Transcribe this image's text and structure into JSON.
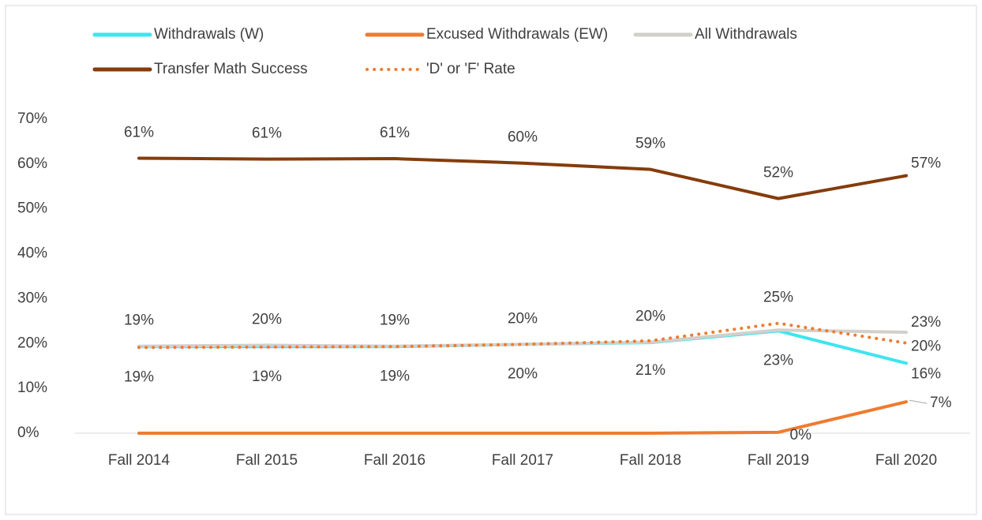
{
  "chart_data": {
    "type": "line",
    "categories": [
      "Fall 2014",
      "Fall 2015",
      "Fall 2016",
      "Fall 2017",
      "Fall 2018",
      "Fall 2019",
      "Fall 2020"
    ],
    "series": [
      {
        "name": "Withdrawals (W)",
        "color": "#3ee5f0",
        "style": "solid",
        "values": [
          19.3,
          19.3,
          19.3,
          19.8,
          20.2,
          22.8,
          15.6
        ],
        "value_labels": [
          null,
          null,
          null,
          null,
          null,
          "23%",
          "16%"
        ]
      },
      {
        "name": "Excused Withdrawals (EW)",
        "color": "#ef7b2f",
        "style": "solid",
        "values": [
          0,
          0,
          0,
          0,
          0,
          0.2,
          7.0
        ],
        "value_labels": [
          null,
          null,
          null,
          null,
          null,
          "0%",
          "7%"
        ]
      },
      {
        "name": "All Withdrawals",
        "color": "#d2d0ca",
        "style": "solid",
        "values": [
          19.4,
          19.6,
          19.4,
          19.8,
          20.3,
          23.0,
          22.5
        ],
        "value_labels": [
          "19%",
          "20%",
          "19%",
          "20%",
          "20%",
          null,
          "23%"
        ]
      },
      {
        "name": "Transfer Math Success",
        "color": "#843c0c",
        "style": "solid",
        "values": [
          61.3,
          61.1,
          61.2,
          60.2,
          58.8,
          52.3,
          57.4
        ],
        "value_labels": [
          "61%",
          "61%",
          "61%",
          "60%",
          "59%",
          "52%",
          "57%"
        ]
      },
      {
        "name": "'D' or 'F' Rate",
        "color": "#ef7b2f",
        "style": "dotted",
        "values": [
          19.1,
          19.2,
          19.3,
          19.8,
          20.6,
          24.5,
          20.1
        ],
        "value_labels": [
          "19%",
          "19%",
          "19%",
          "20%",
          "21%",
          "25%",
          "20%"
        ]
      }
    ],
    "ylim": [
      0,
      70
    ],
    "yticks": [
      {
        "value": 0,
        "label": "0%"
      },
      {
        "value": 10,
        "label": "10%"
      },
      {
        "value": 20,
        "label": "20%"
      },
      {
        "value": 30,
        "label": "30%"
      },
      {
        "value": 40,
        "label": "40%"
      },
      {
        "value": 50,
        "label": "50%"
      },
      {
        "value": 60,
        "label": "60%"
      },
      {
        "value": 70,
        "label": "70%"
      }
    ],
    "grid": false,
    "legend": "top"
  }
}
